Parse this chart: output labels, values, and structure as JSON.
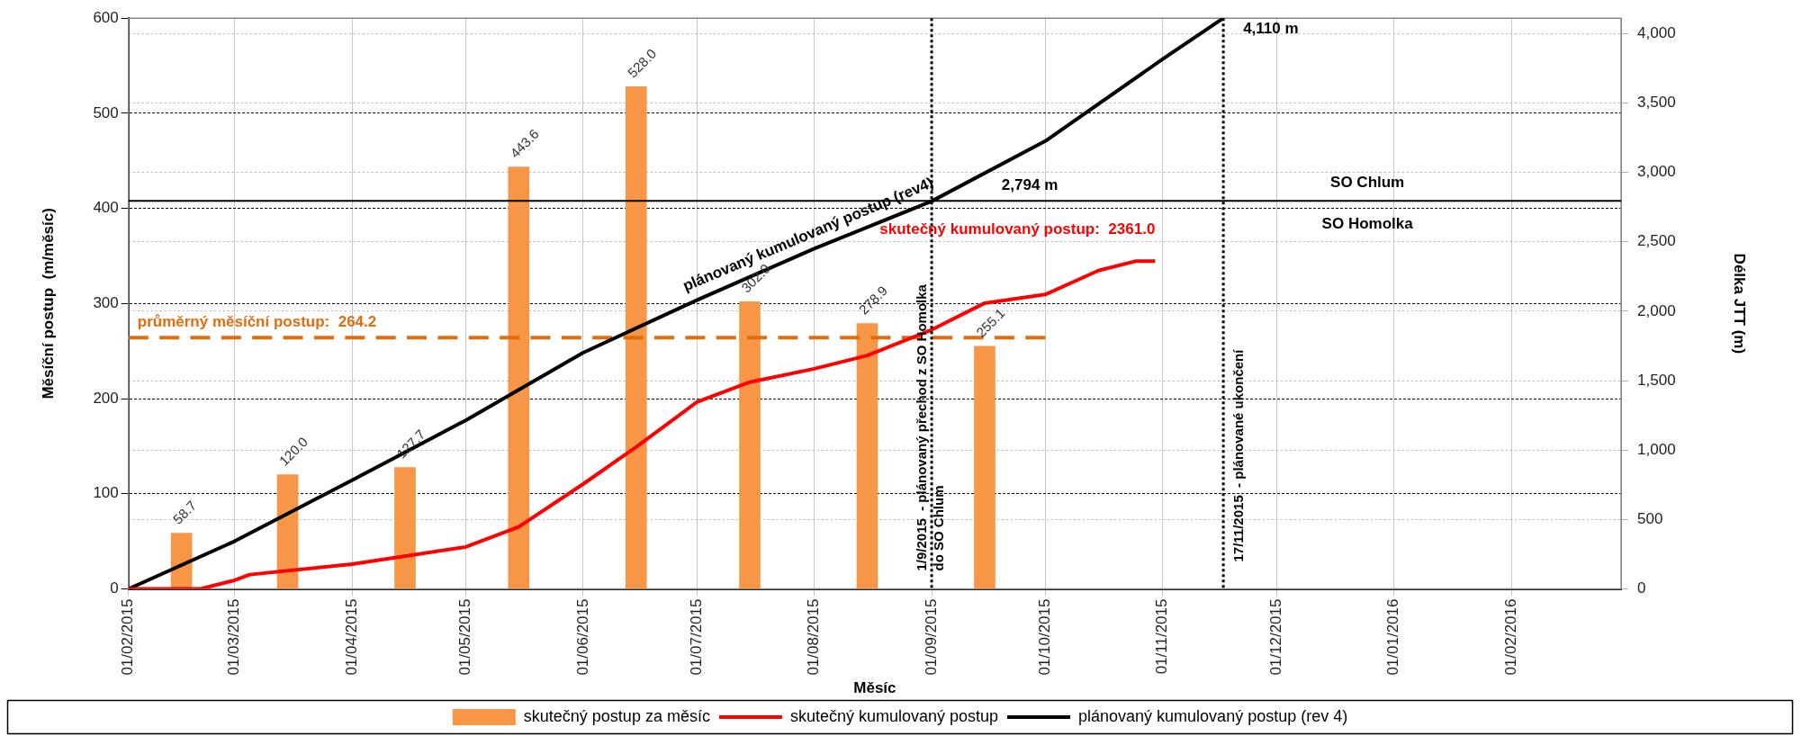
{
  "chart_data": {
    "type": "bar",
    "xlabel": "Měsíc",
    "ylabel": "Měsíční postup  (m/měsíc)",
    "y2label": "Délka JTT (m)",
    "xlim": [
      "2015-02-01",
      "2016-03-01"
    ],
    "xticks": [
      {
        "value": "2015-02-01",
        "label": "01/02/2015"
      },
      {
        "value": "2015-03-01",
        "label": "01/03/2015"
      },
      {
        "value": "2015-04-01",
        "label": "01/04/2015"
      },
      {
        "value": "2015-05-01",
        "label": "01/05/2015"
      },
      {
        "value": "2015-06-01",
        "label": "01/06/2015"
      },
      {
        "value": "2015-07-01",
        "label": "01/07/2015"
      },
      {
        "value": "2015-08-01",
        "label": "01/08/2015"
      },
      {
        "value": "2015-09-01",
        "label": "01/09/2015"
      },
      {
        "value": "2015-10-01",
        "label": "01/10/2015"
      },
      {
        "value": "2015-11-01",
        "label": "01/11/2015"
      },
      {
        "value": "2015-12-01",
        "label": "01/12/2015"
      },
      {
        "value": "2016-01-01",
        "label": "01/01/2016"
      },
      {
        "value": "2016-02-01",
        "label": "01/02/2016"
      }
    ],
    "ylim": [
      0,
      600
    ],
    "yticks": [
      0,
      100,
      200,
      300,
      400,
      500,
      600
    ],
    "y2lim": [
      0,
      4110
    ],
    "y2ticks": [
      0,
      500,
      {
        "value": 1000,
        "label": "1,000"
      },
      {
        "value": 1500,
        "label": "1,500"
      },
      {
        "value": 2000,
        "label": "2,000"
      },
      {
        "value": 2500,
        "label": "2,500"
      },
      {
        "value": 3000,
        "label": "3,000"
      },
      {
        "value": 3500,
        "label": "3,500"
      },
      {
        "value": 4000,
        "label": "4,000"
      }
    ],
    "grid": true,
    "legend": "bottom",
    "series": [
      {
        "name": "skutečný postup za měsíc",
        "color": "#f79646",
        "x": [
          "2015-02-15",
          "2015-03-15",
          "2015-04-15",
          "2015-05-15",
          "2015-06-15",
          "2015-07-15",
          "2015-08-15",
          "2015-09-15"
        ],
        "values": [
          58.7,
          120.0,
          127.7,
          443.6,
          528.0,
          302.0,
          278.9,
          255.1
        ],
        "value_labels": [
          "58.7",
          "120.0",
          "127.7",
          "443.6",
          "528.0",
          "302.0",
          "278.9",
          "255.1"
        ]
      },
      {
        "type": "line",
        "name": "skutečný kumulovaný postup",
        "color": "#ff0000",
        "axis": "y2",
        "x": [
          "2015-02-01",
          "2015-02-20",
          "2015-03-01",
          "2015-03-05",
          "2015-04-01",
          "2015-05-01",
          "2015-05-15",
          "2015-06-01",
          "2015-06-15",
          "2015-07-01",
          "2015-07-15",
          "2015-08-01",
          "2015-08-15",
          "2015-09-01",
          "2015-09-15",
          "2015-10-01",
          "2015-10-15",
          "2015-10-25",
          "2015-10-30"
        ],
        "values": [
          0,
          0,
          62,
          103,
          178,
          302,
          446,
          755,
          1022,
          1345,
          1489,
          1585,
          1681,
          1866,
          2058,
          2120,
          2292,
          2361,
          2361
        ],
        "value_labels": [
          null,
          null,
          null,
          null,
          null,
          null,
          null,
          null,
          null,
          null,
          null,
          null,
          null,
          null,
          null,
          null,
          null,
          null,
          "skutečný kumulovaný postup:  2361.0"
        ]
      },
      {
        "type": "line",
        "name": "plánovaný kumulovaný postup (rev 4)",
        "color": "#000000",
        "axis": "y2",
        "x": [
          "2015-02-01",
          "2015-03-01",
          "2015-04-01",
          "2015-05-01",
          "2015-06-01",
          "2015-07-01",
          "2015-08-01",
          "2015-09-01",
          "2015-10-01",
          "2015-11-01",
          "2015-11-17"
        ],
        "values": [
          0,
          343,
          782,
          1214,
          1701,
          2079,
          2450,
          2792,
          3225,
          3815,
          4110
        ],
        "value_labels": [
          null,
          null,
          null,
          null,
          null,
          null,
          "plánovaný kumulovaný postup (rev4)",
          null,
          null,
          null,
          null
        ]
      },
      {
        "type": "line",
        "color": "#e46c0a",
        "line_style": "dashed",
        "x": [
          "2015-02-01",
          "2015-10-01"
        ],
        "values": [
          264.2,
          264.2
        ],
        "value_labels": [
          "průměrný měsíční postup:  264.2",
          null
        ]
      }
    ],
    "ref_lines": [
      {
        "axis": "x",
        "value": "2015-09-01",
        "label": "1/9/2015  - plánovaný přechod z SO Homolka do SO Chlum",
        "color": "#000000",
        "line_style": "dotted"
      },
      {
        "axis": "x",
        "value": "2015-11-17",
        "label": "17/11/2015  - plánované ukončení",
        "color": "#000000",
        "line_style": "dotted"
      },
      {
        "axis": "y2",
        "value": 2794,
        "label": "2,794 m",
        "color": "#000000",
        "line_style": "solid"
      }
    ],
    "annotations": [
      {
        "text": "4,110 m",
        "x": "2015-11-17",
        "y": 600
      },
      "SO Chlum",
      "SO Homolka"
    ]
  }
}
